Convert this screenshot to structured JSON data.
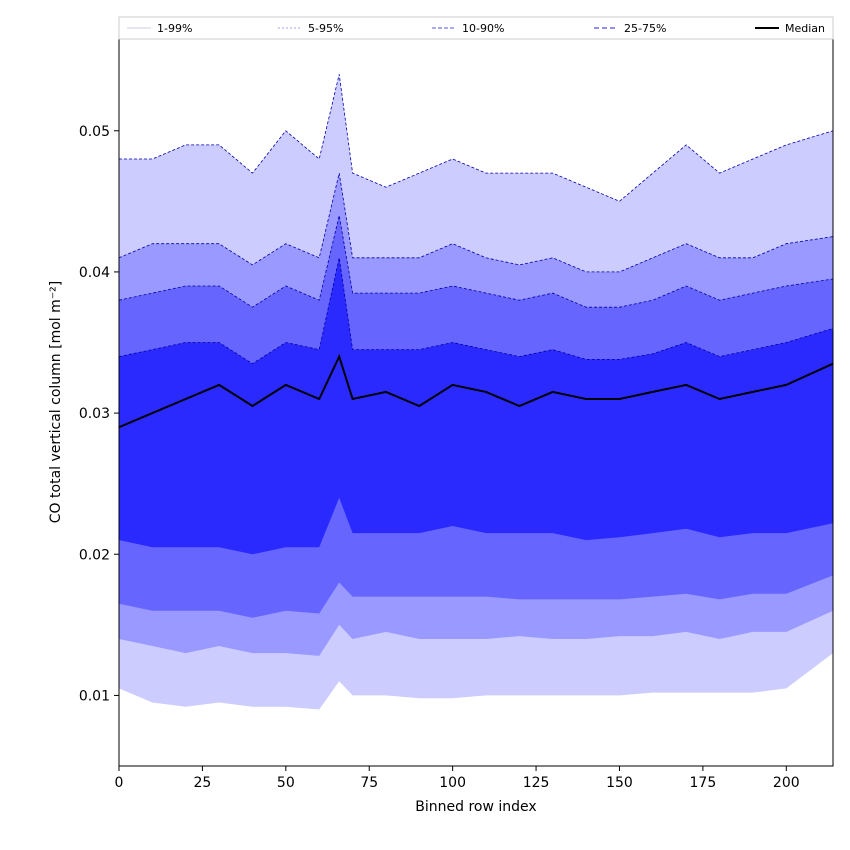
{
  "chart_data": {
    "type": "area",
    "title": "",
    "xlabel": "Binned row index",
    "ylabel": "CO total vertical column [mol m⁻²]",
    "xlim": [
      0,
      214
    ],
    "ylim": [
      0.005,
      0.0565
    ],
    "x_ticks": [
      0,
      25,
      50,
      75,
      100,
      125,
      150,
      175,
      200
    ],
    "x_tick_labels": [
      "0",
      "25",
      "50",
      "75",
      "100",
      "125",
      "150",
      "175",
      "200"
    ],
    "y_ticks": [
      0.01,
      0.02,
      0.03,
      0.04,
      0.05
    ],
    "y_tick_labels": [
      "0.01",
      "0.02",
      "0.03",
      "0.04",
      "0.05"
    ],
    "grid": false,
    "legend_position": "top",
    "legend": [
      "1-99%",
      "5-95%",
      "10-90%",
      "25-75%",
      "Median"
    ],
    "colors": {
      "band_1_99": "#ccccff",
      "band_5_95": "#9999ff",
      "band_10_90": "#6666ff",
      "band_25_75": "#2a2aff",
      "median": "#000000",
      "envelope_line": "#0000aa"
    },
    "x": [
      0,
      10,
      20,
      30,
      40,
      50,
      60,
      66,
      70,
      80,
      90,
      100,
      110,
      120,
      130,
      140,
      150,
      160,
      170,
      180,
      190,
      200,
      214
    ],
    "series": [
      {
        "name": "1-99%",
        "lower": [
          0.0105,
          0.0095,
          0.0092,
          0.0095,
          0.0092,
          0.0092,
          0.009,
          0.011,
          0.01,
          0.01,
          0.0098,
          0.0098,
          0.01,
          0.01,
          0.01,
          0.01,
          0.01,
          0.0102,
          0.0102,
          0.0102,
          0.0102,
          0.0105,
          0.013
        ],
        "upper": [
          0.048,
          0.048,
          0.049,
          0.049,
          0.047,
          0.05,
          0.048,
          0.054,
          0.047,
          0.046,
          0.047,
          0.048,
          0.047,
          0.047,
          0.047,
          0.046,
          0.045,
          0.047,
          0.049,
          0.047,
          0.048,
          0.049,
          0.05
        ]
      },
      {
        "name": "5-95%",
        "lower": [
          0.014,
          0.0135,
          0.013,
          0.0135,
          0.013,
          0.013,
          0.0128,
          0.015,
          0.014,
          0.0145,
          0.014,
          0.014,
          0.014,
          0.0142,
          0.014,
          0.014,
          0.0142,
          0.0142,
          0.0145,
          0.014,
          0.0145,
          0.0145,
          0.016
        ],
        "upper": [
          0.041,
          0.042,
          0.042,
          0.042,
          0.0405,
          0.042,
          0.041,
          0.047,
          0.041,
          0.041,
          0.041,
          0.042,
          0.041,
          0.0405,
          0.041,
          0.04,
          0.04,
          0.041,
          0.042,
          0.041,
          0.041,
          0.042,
          0.0425
        ]
      },
      {
        "name": "10-90%",
        "lower": [
          0.0165,
          0.016,
          0.016,
          0.016,
          0.0155,
          0.016,
          0.0158,
          0.018,
          0.017,
          0.017,
          0.017,
          0.017,
          0.017,
          0.0168,
          0.0168,
          0.0168,
          0.0168,
          0.017,
          0.0172,
          0.0168,
          0.0172,
          0.0172,
          0.0185
        ],
        "upper": [
          0.038,
          0.0385,
          0.039,
          0.039,
          0.0375,
          0.039,
          0.038,
          0.044,
          0.0385,
          0.0385,
          0.0385,
          0.039,
          0.0385,
          0.038,
          0.0385,
          0.0375,
          0.0375,
          0.038,
          0.039,
          0.038,
          0.0385,
          0.039,
          0.0395
        ]
      },
      {
        "name": "25-75%",
        "lower": [
          0.021,
          0.0205,
          0.0205,
          0.0205,
          0.02,
          0.0205,
          0.0205,
          0.024,
          0.0215,
          0.0215,
          0.0215,
          0.022,
          0.0215,
          0.0215,
          0.0215,
          0.021,
          0.0212,
          0.0215,
          0.0218,
          0.0212,
          0.0215,
          0.0215,
          0.0222
        ],
        "upper": [
          0.034,
          0.0345,
          0.035,
          0.035,
          0.0335,
          0.035,
          0.0345,
          0.041,
          0.0345,
          0.0345,
          0.0345,
          0.035,
          0.0345,
          0.034,
          0.0345,
          0.0338,
          0.0338,
          0.0342,
          0.035,
          0.034,
          0.0345,
          0.035,
          0.036
        ]
      },
      {
        "name": "Median",
        "values": [
          0.029,
          0.03,
          0.031,
          0.032,
          0.0305,
          0.032,
          0.031,
          0.034,
          0.031,
          0.0315,
          0.0305,
          0.032,
          0.0315,
          0.0305,
          0.0315,
          0.031,
          0.031,
          0.0315,
          0.032,
          0.031,
          0.0315,
          0.032,
          0.0335
        ]
      }
    ]
  }
}
